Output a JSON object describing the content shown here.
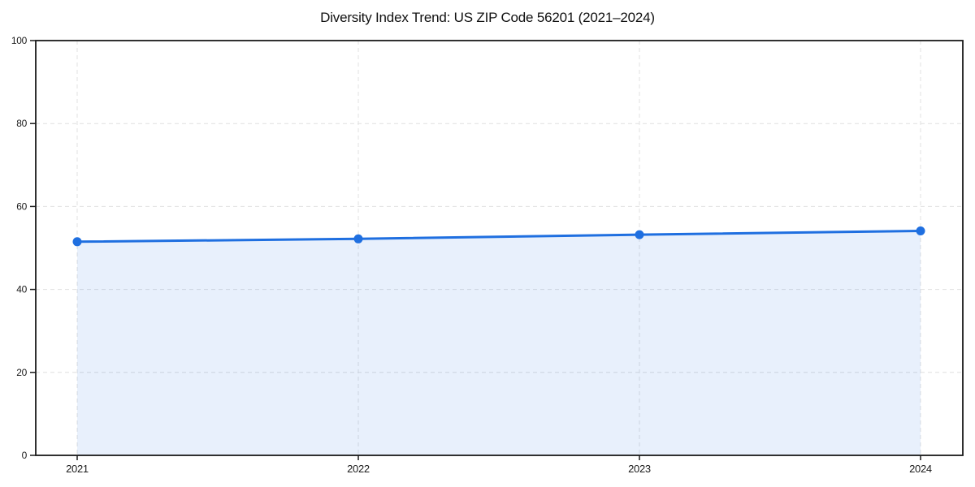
{
  "chart_data": {
    "type": "line",
    "title": "Diversity Index Trend: US ZIP Code 56201 (2021–2024)",
    "categories": [
      "2021",
      "2022",
      "2023",
      "2024"
    ],
    "series": [
      {
        "name": "Diversity Index",
        "values": [
          51.5,
          52.2,
          53.2,
          54.1
        ]
      }
    ],
    "xlabel": "",
    "ylabel": "",
    "ylim": [
      0,
      100
    ],
    "yticks": [
      0,
      20,
      40,
      60,
      80,
      100
    ],
    "grid": "dashed-both-axes",
    "legend": "none",
    "area_fill": true,
    "marker": "circle",
    "colors": {
      "line": "#1f6fe0",
      "marker": "#1f6fe0",
      "area_fill": "rgba(31,111,224,0.10)",
      "gridline": "#e0e0e0",
      "axis_frame": "#1a1a1a",
      "tick_label": "#1a1a1a",
      "title": "#111111",
      "background": "#ffffff"
    }
  }
}
